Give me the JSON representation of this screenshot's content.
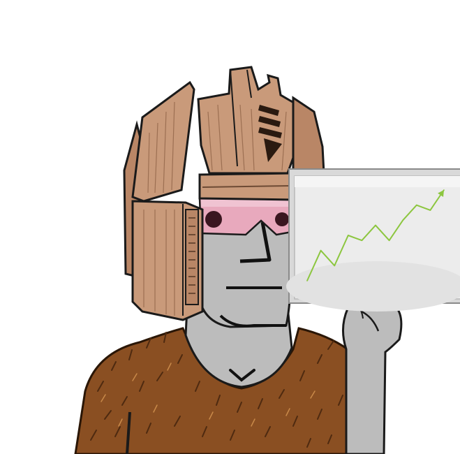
{
  "image": {
    "subject": "cartoon-character-holding-chart",
    "colors": {
      "background": "#ffffff",
      "skin": "#bcbcbc",
      "helmet": "#c99a7a",
      "helmet_dark": "#9c6f52",
      "visor": "#e8a9bd",
      "eye": "#3a1620",
      "fur": "#8a4f22",
      "fur_dark": "#4e2a10",
      "outline": "#1a1a1a",
      "board": "#e6e6e6",
      "trend_line": "#8cc63f"
    },
    "chart_data": {
      "type": "line",
      "trend": "up",
      "x": [
        0,
        1,
        2,
        3,
        4,
        5,
        6,
        7,
        8,
        9,
        10
      ],
      "values": [
        0,
        6,
        3,
        9,
        8,
        11,
        8,
        12,
        15,
        14,
        18
      ]
    }
  }
}
